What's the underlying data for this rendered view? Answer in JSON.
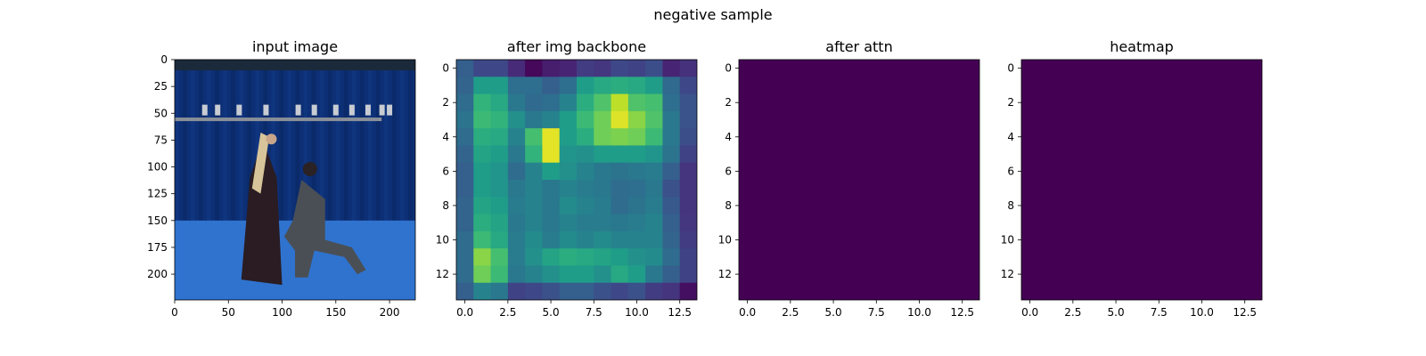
{
  "figure": {
    "suptitle": "negative sample"
  },
  "colors": {
    "viridis": [
      "#440154",
      "#482878",
      "#3e4989",
      "#31688e",
      "#26828e",
      "#1f9e89",
      "#35b779",
      "#6ece58",
      "#b5de2b",
      "#fde725"
    ],
    "photo_studio_bg": "#0d2f75",
    "photo_floor": "#2f73cf",
    "photo_figure_dark": "#2a1c22",
    "photo_figure_suit": "#4a4f55",
    "photo_hair": "#d8c49a",
    "photo_skin": "#c9a58a",
    "axis": "#000000"
  },
  "chart_data": [
    {
      "type": "image",
      "title": "input image",
      "content": "photo",
      "xlim": [
        0,
        224
      ],
      "ylim": [
        224,
        0
      ],
      "xticks": [
        0,
        50,
        100,
        150,
        200
      ],
      "yticks": [
        0,
        25,
        50,
        75,
        100,
        125,
        150,
        175,
        200
      ]
    },
    {
      "type": "heatmap",
      "title": "after img backbone",
      "colormap": "viridis",
      "xlim": [
        -0.5,
        13.5
      ],
      "ylim": [
        13.5,
        -0.5
      ],
      "xticks": [
        0.0,
        2.5,
        5.0,
        7.5,
        10.0,
        12.5
      ],
      "yticks": [
        0,
        2,
        4,
        6,
        8,
        10,
        12
      ],
      "values": [
        [
          0.3,
          0.22,
          0.22,
          0.12,
          0.02,
          0.08,
          0.1,
          0.18,
          0.16,
          0.22,
          0.2,
          0.24,
          0.1,
          0.14
        ],
        [
          0.32,
          0.55,
          0.55,
          0.36,
          0.36,
          0.3,
          0.36,
          0.55,
          0.6,
          0.62,
          0.6,
          0.55,
          0.34,
          0.22
        ],
        [
          0.35,
          0.65,
          0.6,
          0.4,
          0.34,
          0.36,
          0.45,
          0.62,
          0.72,
          0.9,
          0.72,
          0.7,
          0.36,
          0.26
        ],
        [
          0.38,
          0.68,
          0.65,
          0.5,
          0.4,
          0.45,
          0.55,
          0.68,
          0.78,
          0.95,
          0.82,
          0.72,
          0.4,
          0.26
        ],
        [
          0.35,
          0.62,
          0.6,
          0.45,
          0.7,
          0.96,
          0.55,
          0.62,
          0.78,
          0.8,
          0.78,
          0.68,
          0.4,
          0.24
        ],
        [
          0.32,
          0.58,
          0.55,
          0.4,
          0.65,
          0.96,
          0.52,
          0.5,
          0.55,
          0.55,
          0.55,
          0.52,
          0.38,
          0.2
        ],
        [
          0.3,
          0.55,
          0.52,
          0.35,
          0.45,
          0.55,
          0.5,
          0.45,
          0.4,
          0.38,
          0.4,
          0.42,
          0.3,
          0.15
        ],
        [
          0.3,
          0.55,
          0.52,
          0.4,
          0.45,
          0.4,
          0.45,
          0.42,
          0.4,
          0.35,
          0.36,
          0.4,
          0.25,
          0.15
        ],
        [
          0.32,
          0.58,
          0.55,
          0.42,
          0.45,
          0.4,
          0.48,
          0.45,
          0.42,
          0.35,
          0.38,
          0.42,
          0.28,
          0.15
        ],
        [
          0.32,
          0.62,
          0.58,
          0.4,
          0.45,
          0.4,
          0.45,
          0.42,
          0.42,
          0.4,
          0.42,
          0.45,
          0.3,
          0.16
        ],
        [
          0.35,
          0.68,
          0.6,
          0.42,
          0.48,
          0.42,
          0.48,
          0.45,
          0.48,
          0.45,
          0.45,
          0.45,
          0.32,
          0.18
        ],
        [
          0.35,
          0.82,
          0.7,
          0.42,
          0.5,
          0.58,
          0.62,
          0.6,
          0.58,
          0.55,
          0.5,
          0.48,
          0.35,
          0.2
        ],
        [
          0.35,
          0.78,
          0.68,
          0.4,
          0.45,
          0.5,
          0.55,
          0.55,
          0.5,
          0.6,
          0.55,
          0.4,
          0.3,
          0.2
        ],
        [
          0.3,
          0.45,
          0.4,
          0.2,
          0.22,
          0.25,
          0.3,
          0.3,
          0.25,
          0.22,
          0.25,
          0.18,
          0.15,
          0.04
        ]
      ]
    },
    {
      "type": "heatmap",
      "title": "after attn",
      "colormap": "viridis",
      "uniform_value": 0,
      "xlim": [
        -0.5,
        13.5
      ],
      "ylim": [
        13.5,
        -0.5
      ],
      "xticks": [
        0.0,
        2.5,
        5.0,
        7.5,
        10.0,
        12.5
      ],
      "yticks": [
        0,
        2,
        4,
        6,
        8,
        10,
        12
      ]
    },
    {
      "type": "heatmap",
      "title": "heatmap",
      "colormap": "viridis",
      "uniform_value": 0,
      "xlim": [
        -0.5,
        13.5
      ],
      "ylim": [
        13.5,
        -0.5
      ],
      "xticks": [
        0.0,
        2.5,
        5.0,
        7.5,
        10.0,
        12.5
      ],
      "yticks": [
        0,
        2,
        4,
        6,
        8,
        10,
        12
      ]
    }
  ]
}
